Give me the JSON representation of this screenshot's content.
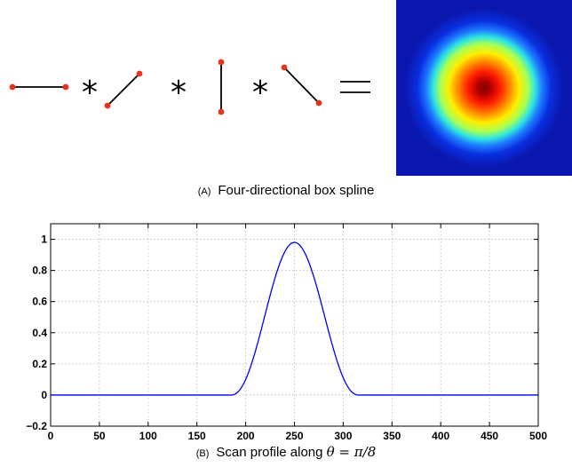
{
  "panel_a": {
    "operators": [
      "*",
      "*",
      "*",
      "="
    ],
    "segments": [
      "horizontal",
      "diagonal-up",
      "vertical",
      "diagonal-down"
    ],
    "colors": {
      "segment": "#000000",
      "endpoint": "#e8321c"
    },
    "caption": {
      "letter": "(A)",
      "text": "Four-directional box spline"
    }
  },
  "chart_data": {
    "type": "line",
    "series": [
      {
        "color": "#0000ff",
        "profile": "bell",
        "baseline": 0,
        "peak_x": 250,
        "peak_y": 0.98,
        "support": [
          185,
          316
        ]
      }
    ],
    "xlim": [
      0,
      500
    ],
    "ylim": [
      -0.2,
      1.1
    ],
    "x_ticks": [
      0,
      50,
      100,
      150,
      200,
      250,
      300,
      350,
      400,
      450,
      500
    ],
    "y_ticks": [
      -0.2,
      0,
      0.2,
      0.4,
      0.6,
      0.8,
      1
    ],
    "y_tick_labels": [
      "−0.2",
      "0",
      "0.2",
      "0.4",
      "0.6",
      "0.8",
      "1"
    ],
    "grid": true,
    "caption": {
      "letter": "(B)",
      "text": "Scan profile along",
      "math": "θ = π/8"
    }
  }
}
